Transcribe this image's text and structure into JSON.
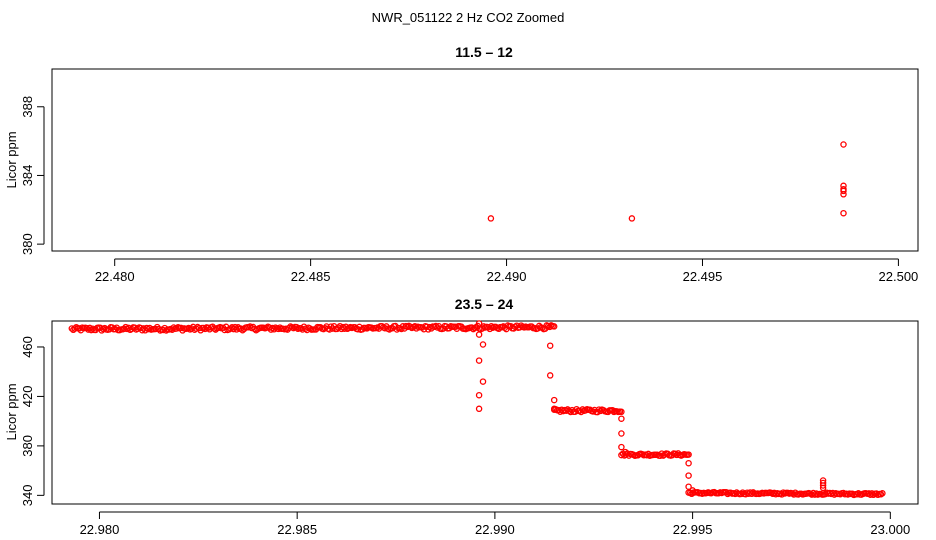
{
  "figure": {
    "title": "NWR_051122  2 Hz CO2 Zoomed"
  },
  "colors": {
    "points": "#ff0000",
    "axes": "#000000",
    "background": "#ffffff"
  },
  "chart_data": [
    {
      "type": "scatter",
      "title": "11.5 – 12",
      "xlabel": "",
      "ylabel": "Licor ppm",
      "xlim": [
        22.4784,
        22.5005
      ],
      "ylim": [
        379.6,
        390.2
      ],
      "xticks": [
        "22.480",
        "22.485",
        "22.490",
        "22.495",
        "22.500"
      ],
      "yticks": [
        "380",
        "384",
        "388"
      ],
      "grid": false,
      "legend": "none",
      "marker": "open-circle",
      "series": [
        {
          "points": [
            [
              22.4896,
              381.5
            ],
            [
              22.4932,
              381.5
            ],
            [
              22.4986,
              385.8
            ],
            [
              22.4986,
              383.4
            ],
            [
              22.4986,
              383.2
            ],
            [
              22.4986,
              383.1
            ],
            [
              22.4986,
              382.9
            ],
            [
              22.4986,
              381.8
            ]
          ]
        }
      ]
    },
    {
      "type": "scatter",
      "title": "23.5 – 24",
      "xlabel": "",
      "ylabel": "Licor ppm",
      "xlim": [
        22.9788,
        23.0007
      ],
      "ylim": [
        333,
        481
      ],
      "xticks": [
        "22.980",
        "22.985",
        "22.990",
        "22.995",
        "23.000"
      ],
      "yticks": [
        "340",
        "380",
        "420",
        "460"
      ],
      "grid": false,
      "legend": "none",
      "marker": "open-circle",
      "segments": [
        {
          "x_start": 22.9793,
          "x_end": 22.9915,
          "y_start": 474.5,
          "y_end": 476,
          "noise": 1.5
        },
        {
          "x_start": 22.9915,
          "x_end": 22.9932,
          "y_start": 408.5,
          "y_end": 408.5,
          "noise": 1.2
        },
        {
          "x_start": 22.9932,
          "x_end": 22.9949,
          "y_start": 373,
          "y_end": 373,
          "noise": 1.0
        },
        {
          "x_start": 22.9949,
          "x_end": 22.9998,
          "y_start": 342,
          "y_end": 341,
          "noise": 0.8
        }
      ],
      "points": [
        [
          22.9896,
          479
        ],
        [
          22.9896,
          470
        ],
        [
          22.9897,
          462
        ],
        [
          22.9896,
          449
        ],
        [
          22.9897,
          432
        ],
        [
          22.9896,
          421
        ],
        [
          22.9896,
          410
        ],
        [
          22.9914,
          461
        ],
        [
          22.9914,
          437
        ],
        [
          22.9915,
          417
        ],
        [
          22.9915,
          410
        ],
        [
          22.9932,
          402
        ],
        [
          22.9932,
          390
        ],
        [
          22.9932,
          379
        ],
        [
          22.9933,
          375
        ],
        [
          22.9949,
          366
        ],
        [
          22.9949,
          356
        ],
        [
          22.9949,
          347
        ],
        [
          22.995,
          344
        ],
        [
          22.9983,
          352
        ],
        [
          22.9983,
          350
        ],
        [
          22.9983,
          348
        ],
        [
          22.9983,
          346
        ]
      ]
    }
  ]
}
